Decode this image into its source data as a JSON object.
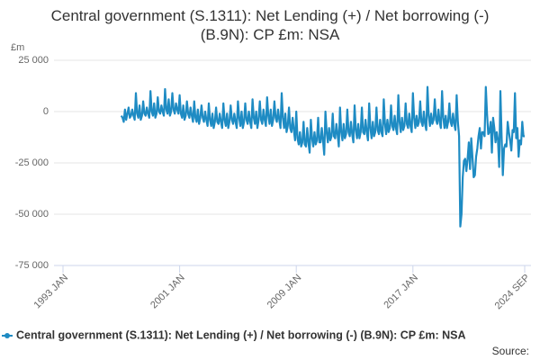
{
  "chart_data": {
    "type": "line",
    "title": "Central government (S.1311): Net Lending (+) / Net borrowing (-) (B.9N): CP £m: NSA",
    "y_unit": "£m",
    "source_label": "Source:",
    "categories": [
      "1993 JAN",
      null,
      null,
      null,
      null,
      null,
      null,
      null,
      null,
      null,
      null,
      null,
      null,
      null,
      null,
      null,
      null,
      null,
      null,
      null,
      null,
      null,
      null,
      null,
      null,
      null,
      null,
      null,
      null,
      null,
      null,
      null,
      null,
      null,
      null,
      null,
      null,
      null,
      null,
      null,
      null,
      null,
      null,
      null,
      null,
      null,
      null,
      null,
      null,
      null,
      null,
      null,
      null,
      null,
      null,
      null,
      null,
      null,
      null,
      null,
      null,
      null,
      null,
      null,
      null,
      null,
      null,
      null,
      null,
      null,
      null,
      null,
      null,
      null,
      null,
      null,
      null,
      null,
      null,
      null,
      null,
      null,
      null,
      null,
      null,
      null,
      null,
      null,
      null,
      null,
      null,
      null,
      null,
      null,
      null,
      null,
      "2001 JAN",
      null,
      null,
      null,
      null,
      null,
      null,
      null,
      null,
      null,
      null,
      null,
      null,
      null,
      null,
      null,
      null,
      null,
      null,
      null,
      null,
      null,
      null,
      null,
      null,
      null,
      null,
      null,
      null,
      null,
      null,
      null,
      null,
      null,
      null,
      null,
      null,
      null,
      null,
      null,
      null,
      null,
      null,
      null,
      null,
      null,
      null,
      null,
      null,
      null,
      null,
      null,
      null,
      null,
      null,
      null,
      null,
      null,
      null,
      null,
      null,
      null,
      null,
      null,
      null,
      null,
      null,
      null,
      null,
      null,
      null,
      null,
      null,
      null,
      null,
      null,
      null,
      null,
      null,
      null,
      null,
      null,
      null,
      null,
      null,
      null,
      null,
      null,
      null,
      null,
      null,
      null,
      null,
      null,
      null,
      null,
      "2009 JAN",
      null,
      null,
      null,
      null,
      null,
      null,
      null,
      null,
      null,
      null,
      null,
      null,
      null,
      null,
      null,
      null,
      null,
      null,
      null,
      null,
      null,
      null,
      null,
      null,
      null,
      null,
      null,
      null,
      null,
      null,
      null,
      null,
      null,
      null,
      null,
      null,
      null,
      null,
      null,
      null,
      null,
      null,
      null,
      null,
      null,
      null,
      null,
      null,
      null,
      null,
      null,
      null,
      null,
      null,
      null,
      null,
      null,
      null,
      null,
      null,
      null,
      null,
      null,
      null,
      null,
      null,
      null,
      null,
      null,
      null,
      null,
      null,
      null,
      null,
      null,
      null,
      null,
      null,
      null,
      null,
      null,
      null,
      null,
      null,
      null,
      null,
      null,
      null,
      null,
      null,
      null,
      null,
      null,
      null,
      null,
      "2017 JAN",
      null,
      null,
      null,
      null,
      null,
      null,
      null,
      null,
      null,
      null,
      null,
      null,
      null,
      null,
      null,
      null,
      null,
      null,
      null,
      null,
      null,
      null,
      null,
      null,
      null,
      null,
      null,
      null,
      null,
      null,
      null,
      null,
      null,
      null,
      null,
      null,
      null,
      null,
      null,
      null,
      null,
      null,
      null,
      null,
      null,
      null,
      null,
      null,
      null,
      null,
      null,
      null,
      null,
      null,
      null,
      null,
      null,
      null,
      null,
      null,
      null,
      null,
      null,
      null,
      null,
      null,
      null,
      null,
      null,
      null,
      null,
      null,
      null,
      null,
      null,
      null,
      null,
      null,
      null,
      null,
      null,
      null,
      null,
      null,
      null,
      null,
      null,
      null,
      null,
      null,
      null,
      "2024 SEP"
    ],
    "series": [
      {
        "name": "Central government (S.1311): Net Lending (+) / Net borrowing (-) (B.9N): CP £m: NSA",
        "color": "#1e8bc3",
        "values": [
          null,
          null,
          null,
          null,
          null,
          null,
          null,
          null,
          null,
          null,
          null,
          null,
          null,
          null,
          null,
          null,
          null,
          null,
          null,
          null,
          null,
          null,
          null,
          null,
          null,
          null,
          null,
          null,
          null,
          null,
          null,
          null,
          null,
          null,
          null,
          null,
          null,
          null,
          null,
          null,
          null,
          null,
          null,
          null,
          null,
          null,
          null,
          null,
          -2000,
          -3000,
          -5000,
          1000,
          -4000,
          -1000,
          2000,
          -3000,
          -2000,
          1000,
          -2000,
          -4000,
          9000,
          -1000,
          -3000,
          3000,
          -4000,
          -2000,
          5000,
          -1000,
          -2000,
          2000,
          -1000,
          -3000,
          10000,
          0,
          -2000,
          4000,
          -3000,
          -1000,
          7000,
          0,
          -1000,
          3000,
          0,
          -2000,
          11000,
          1000,
          -1000,
          6000,
          -2000,
          0,
          9000,
          1000,
          -1000,
          4000,
          1000,
          -1000,
          8000,
          -1000,
          -3000,
          3000,
          -4000,
          -2000,
          5000,
          -1000,
          -3000,
          2000,
          -2000,
          -5000,
          5000,
          -3000,
          -5000,
          1000,
          -6000,
          -3000,
          3000,
          -3000,
          -5000,
          0,
          -4000,
          -7000,
          4000,
          -4000,
          -7000,
          -1000,
          -8000,
          -5000,
          2000,
          -5000,
          -6000,
          -1000,
          -5000,
          -8000,
          4000,
          -4000,
          -7000,
          -1000,
          -8000,
          -5000,
          3000,
          -4000,
          -6000,
          -1000,
          -5000,
          -8000,
          5000,
          -3000,
          -7000,
          0,
          -8000,
          -5000,
          4000,
          -4000,
          -6000,
          0,
          -5000,
          -8000,
          6000,
          -3000,
          -6000,
          0,
          -8000,
          -4000,
          5000,
          -4000,
          -6000,
          1000,
          -4000,
          -7000,
          7000,
          -2000,
          -6000,
          1000,
          -7000,
          -4000,
          5000,
          -3000,
          -5000,
          1000,
          -4000,
          -8000,
          9000,
          -3000,
          -8000,
          -1000,
          -10000,
          -7000,
          2000,
          -8000,
          -10000,
          -3000,
          -9000,
          -14000,
          0,
          -13000,
          -16000,
          -10000,
          -17000,
          -15000,
          -5000,
          -16000,
          -17000,
          -8000,
          -15000,
          -20000,
          -4000,
          -13000,
          -17000,
          -10000,
          -16000,
          -14000,
          -3000,
          -15000,
          -15000,
          -8000,
          -14000,
          -21000,
          0,
          -10000,
          -15000,
          -8000,
          -14000,
          -12000,
          -1000,
          -12000,
          -13000,
          -6000,
          -11000,
          -17000,
          2000,
          -10000,
          -14000,
          -6000,
          -13000,
          -11000,
          1000,
          -10000,
          -12000,
          -5000,
          -11000,
          -15000,
          3000,
          -9000,
          -13000,
          -6000,
          -13000,
          -10000,
          2000,
          -10000,
          -11000,
          -4000,
          -10000,
          -14000,
          4000,
          -8000,
          -13000,
          -5000,
          -12000,
          -10000,
          2000,
          -9000,
          -11000,
          -4000,
          -10000,
          -12000,
          6000,
          -6000,
          -11000,
          -4000,
          -10000,
          -8000,
          3000,
          -7000,
          -9000,
          -2000,
          -8000,
          -11000,
          8000,
          -5000,
          -10000,
          -3000,
          -9000,
          -7000,
          4000,
          -6000,
          -8000,
          -1000,
          -7000,
          -10000,
          9000,
          -3000,
          -8000,
          -2000,
          -7000,
          -5000,
          5000,
          -5000,
          -7000,
          0,
          -6000,
          -9000,
          12000,
          -2000,
          -7000,
          -1000,
          -6000,
          -4000,
          6000,
          -4000,
          -6000,
          1000,
          -5000,
          -8000,
          10000,
          -3000,
          -8000,
          -2000,
          -8000,
          -5000,
          4000,
          -5000,
          -7000,
          -1000,
          -6000,
          -9000,
          8000,
          -5000,
          -12000,
          -56000,
          -50000,
          -32000,
          -24000,
          -23000,
          -29000,
          -23000,
          -15000,
          -28000,
          -13000,
          -22000,
          -32000,
          -31000,
          -22000,
          -18000,
          -12000,
          -8000,
          -18000,
          -10000,
          -10000,
          -12000,
          12000,
          -1000,
          -11000,
          -10000,
          -5000,
          -20000,
          -3000,
          -8000,
          -15000,
          -10000,
          -14000,
          -27000,
          10000,
          -12000,
          -31000,
          -18000,
          -16000,
          -17000,
          -5000,
          -10000,
          -14000,
          -19000,
          -9000,
          -10000,
          9000,
          -13000,
          -8000,
          -22000,
          -14000,
          -16000,
          -5000,
          -12000,
          -12000
        ]
      }
    ],
    "ylim": [
      -75000,
      25000
    ],
    "yticks": [
      {
        "value": -75000,
        "label": "-75 000"
      },
      {
        "value": -50000,
        "label": "-50 000"
      },
      {
        "value": -25000,
        "label": "-25 000"
      },
      0,
      {
        "value": 25000,
        "label": "25 000"
      }
    ],
    "grid": true
  }
}
